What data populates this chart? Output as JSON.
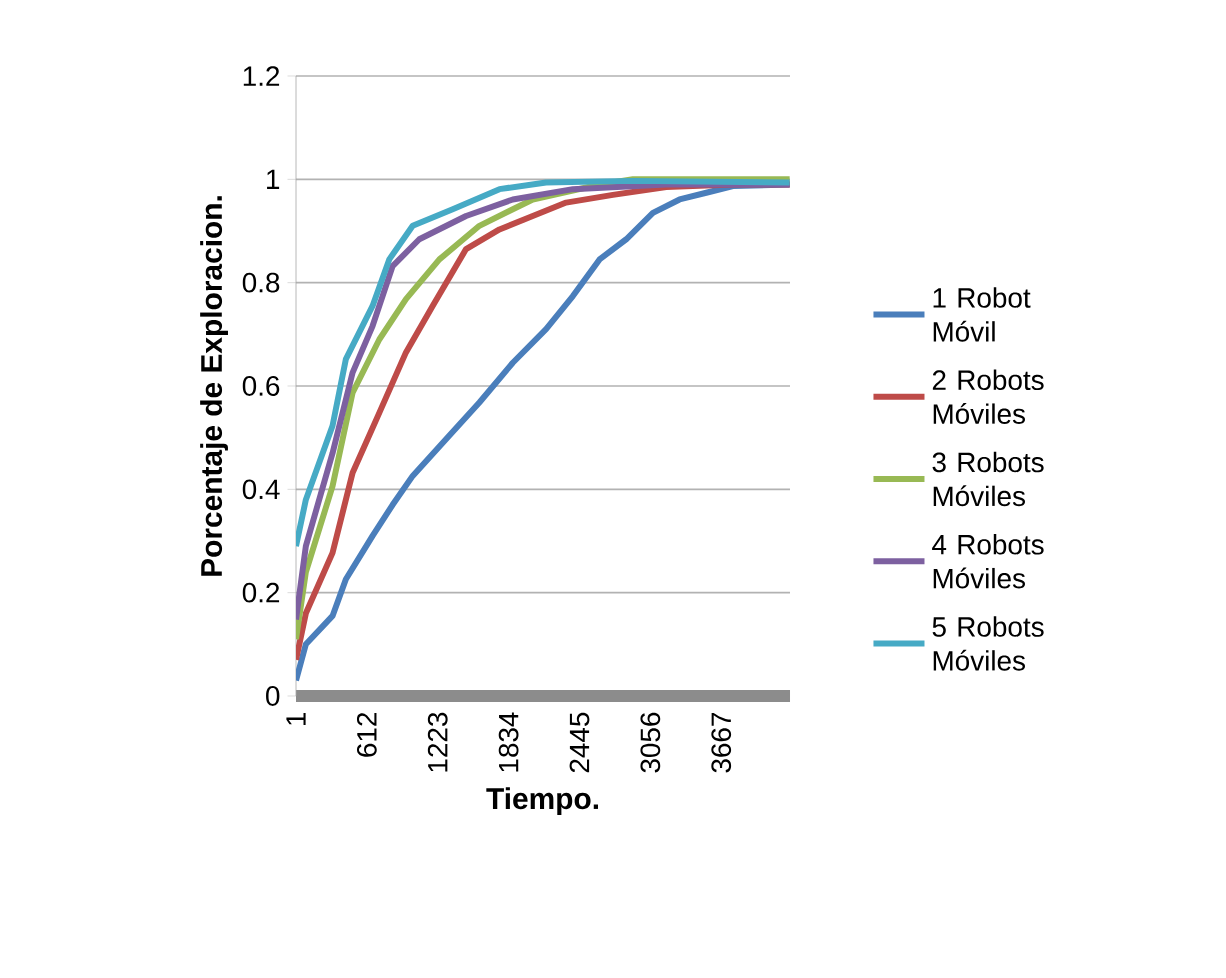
{
  "chart_data": {
    "type": "line",
    "xlabel": "Tiempo.",
    "ylabel": "Porcentaje de Exploracion.",
    "xlim": [
      1,
      4260
    ],
    "xticks": [
      1,
      612,
      1223,
      1834,
      2445,
      3056,
      3667
    ],
    "ylim": [
      0,
      1.2
    ],
    "yticks": [
      0,
      0.2,
      0.4,
      0.6,
      0.8,
      1,
      1.2
    ],
    "grid": "y",
    "legend": "right",
    "marker": "none",
    "line_style": "solid",
    "series": [
      {
        "name": "1 Robot Móvil",
        "color": "#4a7ebb",
        "x": [
          1,
          86,
          316,
          431,
          661,
          834,
          1007,
          1294,
          1582,
          1870,
          2157,
          2388,
          2618,
          2848,
          3078,
          3308,
          3538,
          3768,
          4257
        ],
        "values": [
          0.03,
          0.1,
          0.155,
          0.226,
          0.31,
          0.37,
          0.426,
          0.497,
          0.568,
          0.645,
          0.71,
          0.774,
          0.845,
          0.884,
          0.935,
          0.961,
          0.974,
          0.987,
          0.99
        ]
      },
      {
        "name": "2 Robots Móviles",
        "color": "#be4b48",
        "x": [
          1,
          86,
          316,
          489,
          719,
          949,
          1179,
          1467,
          1755,
          2042,
          2330,
          2733,
          3193,
          3768,
          4257
        ],
        "values": [
          0.07,
          0.16,
          0.277,
          0.432,
          0.548,
          0.665,
          0.755,
          0.865,
          0.903,
          0.929,
          0.955,
          0.97,
          0.985,
          0.99,
          0.99
        ]
      },
      {
        "name": "3 Robots Móviles",
        "color": "#98b954",
        "x": [
          1,
          86,
          316,
          489,
          719,
          949,
          1237,
          1582,
          2042,
          2618,
          2906,
          4257
        ],
        "values": [
          0.11,
          0.24,
          0.406,
          0.587,
          0.69,
          0.768,
          0.845,
          0.91,
          0.961,
          0.99,
          1.0,
          1.0
        ]
      },
      {
        "name": "4 Robots Móviles",
        "color": "#7d60a0",
        "x": [
          1,
          86,
          316,
          489,
          661,
          834,
          1064,
          1467,
          1870,
          2388,
          3193,
          4257
        ],
        "values": [
          0.148,
          0.29,
          0.47,
          0.626,
          0.716,
          0.832,
          0.884,
          0.929,
          0.961,
          0.981,
          0.99,
          0.99
        ]
      },
      {
        "name": "5 Robots Móviles",
        "color": "#46aac5",
        "x": [
          1,
          86,
          316,
          431,
          661,
          805,
          1007,
          1352,
          1755,
          2157,
          2906,
          4257
        ],
        "values": [
          0.29,
          0.38,
          0.523,
          0.652,
          0.755,
          0.845,
          0.91,
          0.942,
          0.981,
          0.994,
          0.997,
          0.994
        ]
      }
    ]
  }
}
